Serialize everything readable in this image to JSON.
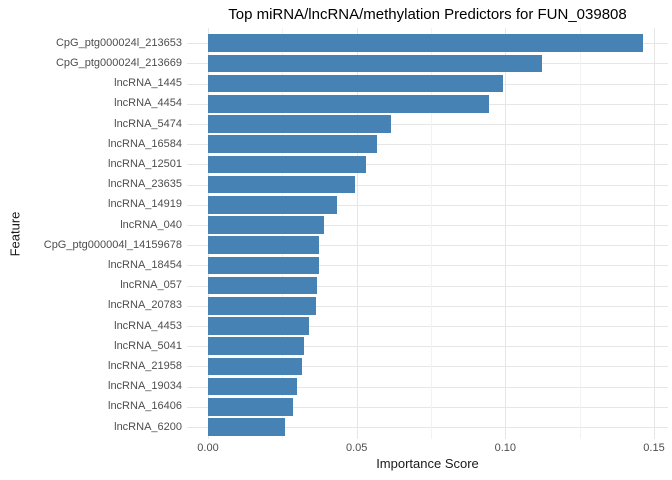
{
  "chart_data": {
    "type": "bar",
    "orientation": "horizontal",
    "title": "Top miRNA/lncRNA/methylation Predictors for FUN_039808",
    "xlabel": "Importance Score",
    "ylabel": "Feature",
    "categories": [
      "CpG_ptg000024l_213653",
      "CpG_ptg000024l_213669",
      "lncRNA_1445",
      "lncRNA_4454",
      "lncRNA_5474",
      "lncRNA_16584",
      "lncRNA_12501",
      "lncRNA_23635",
      "lncRNA_14919",
      "lncRNA_040",
      "CpG_ptg000004l_14159678",
      "lncRNA_18454",
      "lncRNA_057",
      "lncRNA_20783",
      "lncRNA_4453",
      "lncRNA_5041",
      "lncRNA_21958",
      "lncRNA_19034",
      "lncRNA_16406",
      "lncRNA_6200"
    ],
    "values": [
      0.1463,
      0.1123,
      0.0991,
      0.0944,
      0.0615,
      0.0568,
      0.0531,
      0.0493,
      0.0434,
      0.039,
      0.0374,
      0.0372,
      0.0366,
      0.0362,
      0.034,
      0.0324,
      0.0315,
      0.0298,
      0.0285,
      0.0259
    ],
    "x_ticks": {
      "values": [
        0,
        0.05,
        0.1,
        0.15
      ],
      "labels": [
        "0.00",
        "0.05",
        "0.10",
        "0.15"
      ],
      "minor": [
        0.025,
        0.075,
        0.125
      ]
    },
    "xlim": [
      0,
      0.1547
    ],
    "bar_color": "#4682B4",
    "grid": "on",
    "grid_major_color": "#e6e6e6",
    "grid_minor_color": "#f2f2f2",
    "background_color": "#ffffff",
    "tick_label_color": "#4d4d4d",
    "axis_title_color": "#1a1a1a",
    "legend": "none"
  }
}
